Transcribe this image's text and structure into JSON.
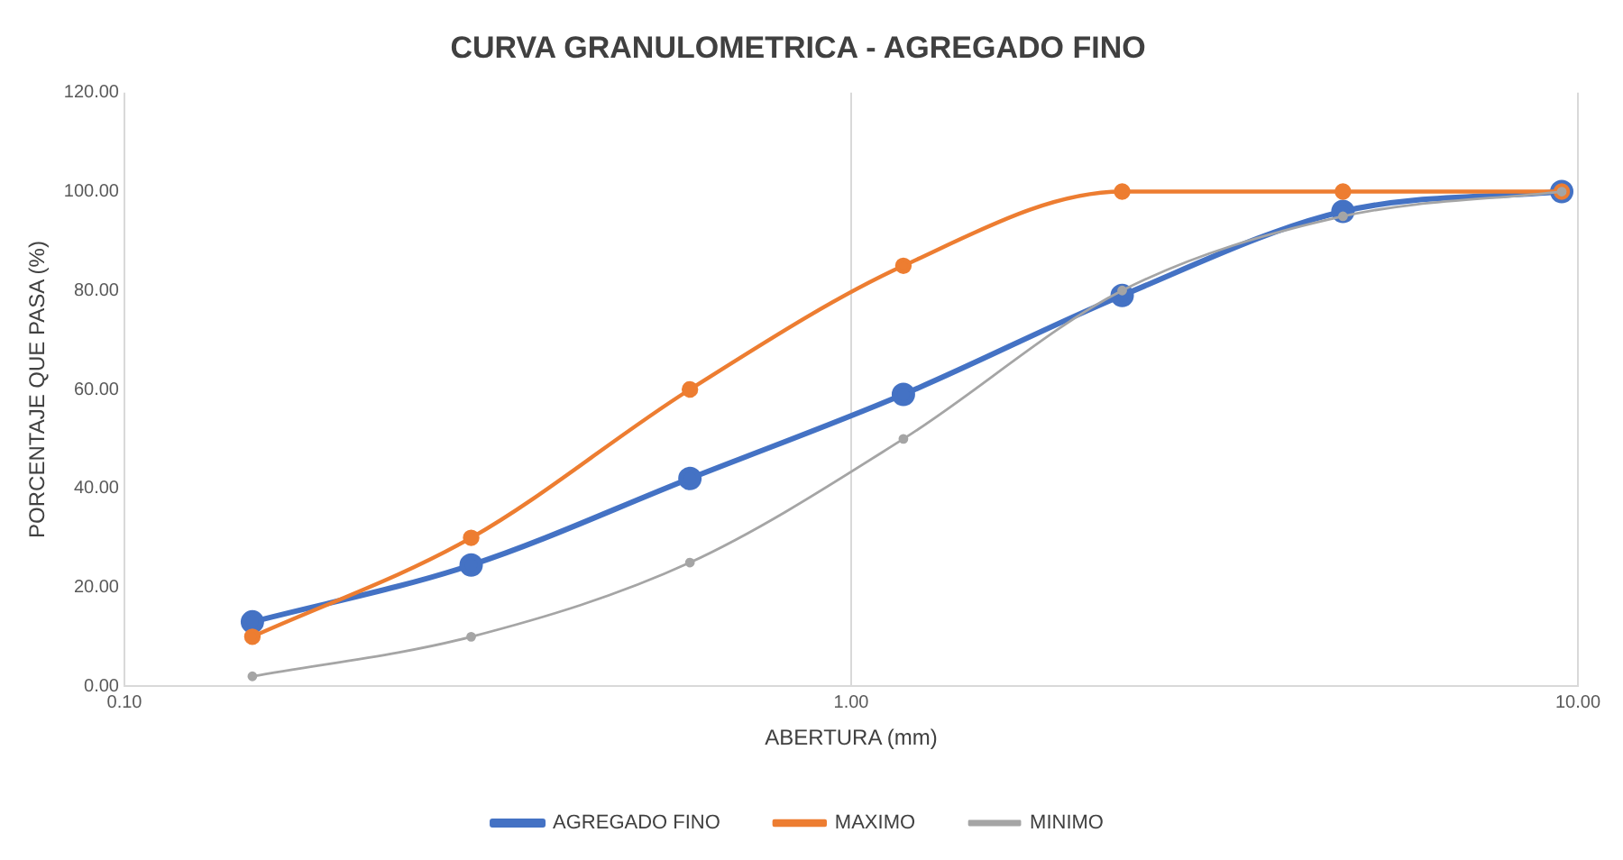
{
  "chart_data": {
    "type": "line",
    "title": "CURVA GRANULOMETRICA - AGREGADO FINO",
    "xlabel": "ABERTURA (mm)",
    "ylabel": "PORCENTAJE QUE PASA (%)",
    "x": [
      0.15,
      0.3,
      0.6,
      1.18,
      2.36,
      4.75,
      9.5
    ],
    "series": [
      {
        "name": "AGREGADO FINO",
        "color": "#4472c4",
        "values": [
          13,
          24.5,
          42,
          59,
          79,
          96,
          100
        ]
      },
      {
        "name": "MAXIMO",
        "color": "#ed7d31",
        "values": [
          10,
          30,
          60,
          85,
          100,
          100,
          100
        ]
      },
      {
        "name": "MINIMO",
        "color": "#a5a5a5",
        "values": [
          2,
          10,
          25,
          50,
          80,
          95,
          100
        ]
      }
    ],
    "log": "x",
    "xlim": [
      0.1,
      10
    ],
    "xticks": [
      {
        "value": 0.1,
        "label": "0.10"
      },
      {
        "value": 1,
        "label": "1.00"
      },
      {
        "value": 10,
        "label": "10.00"
      }
    ],
    "ylim": [
      0,
      120
    ],
    "yticks": [
      {
        "value": 0,
        "label": "0.00"
      },
      {
        "value": 20,
        "label": "20.00"
      },
      {
        "value": 40,
        "label": "40.00"
      },
      {
        "value": 60,
        "label": "60.00"
      },
      {
        "value": 80,
        "label": "80.00"
      },
      {
        "value": 100,
        "label": "100.00"
      },
      {
        "value": 120,
        "label": "120.00"
      }
    ],
    "grid": "x",
    "legend": "bottom",
    "marker": "circle",
    "line_style": "solid"
  }
}
